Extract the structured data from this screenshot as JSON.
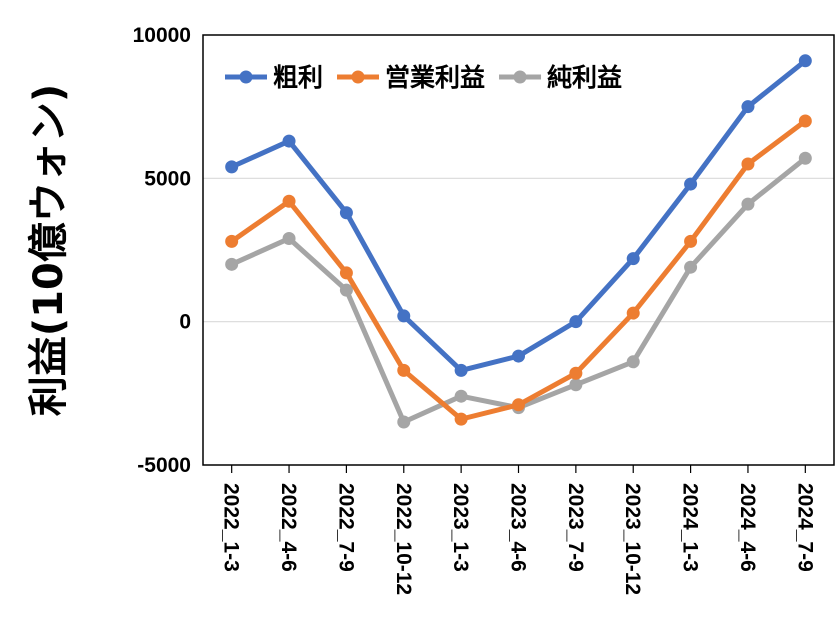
{
  "chart_data": {
    "type": "line",
    "title": "",
    "ylabel": "利益(10億ウォン)",
    "xlabel": "",
    "categories": [
      "2022_1-3",
      "2022_4-6",
      "2022_7-9",
      "2022_10-12",
      "2023_1-3",
      "2023_4-6",
      "2023_7-9",
      "2023_10-12",
      "2024_1-3",
      "2024_4-6",
      "2024_7-9"
    ],
    "ylim": [
      -5000,
      10000
    ],
    "yticks": [
      -5000,
      0,
      5000,
      10000
    ],
    "ytick_labels": [
      "-5000",
      "0",
      "5000",
      "10000"
    ],
    "grid": true,
    "legend_position": "top-left",
    "series": [
      {
        "name": "粗利",
        "color": "#4472C4",
        "values": [
          5400,
          6300,
          3800,
          200,
          -1700,
          -1200,
          0,
          2200,
          4800,
          7500,
          9100
        ]
      },
      {
        "name": "営業利益",
        "color": "#ED7D31",
        "values": [
          2800,
          4200,
          1700,
          -1700,
          -3400,
          -2900,
          -1800,
          300,
          2800,
          5500,
          7000
        ]
      },
      {
        "name": "純利益",
        "color": "#A5A5A5",
        "values": [
          2000,
          2900,
          1100,
          -3500,
          -2600,
          -3000,
          -2200,
          -1400,
          1900,
          4100,
          5700
        ]
      }
    ]
  }
}
